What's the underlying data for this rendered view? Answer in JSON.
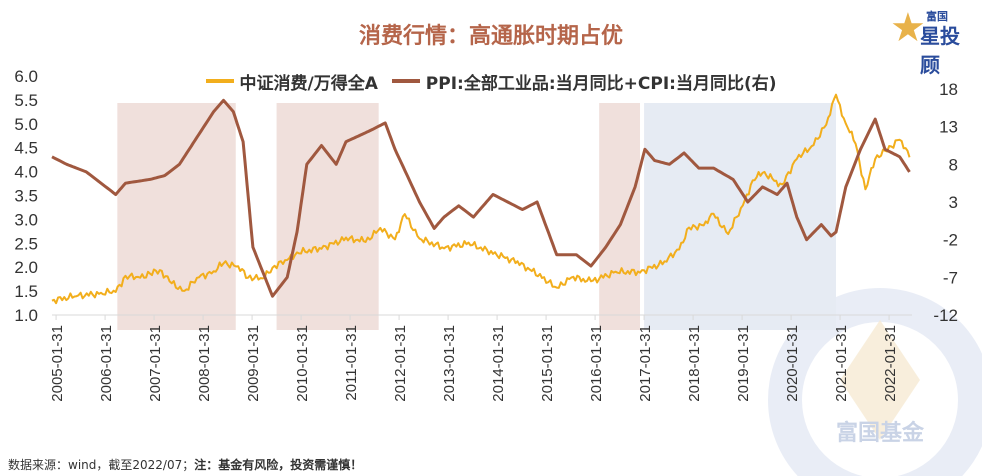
{
  "header": {
    "title": "消费行情：高通胀时期占优",
    "logo_top": "富国",
    "logo_bottom": "星投顾",
    "watermark": "富国基金"
  },
  "footer": {
    "source": "数据来源：wind，截至2022/07；",
    "note": "注：基金有风险，投资需谨慎！"
  },
  "colors": {
    "consumer_ratio": "#f2ae1c",
    "inflation": "#a0583f",
    "shade_red": "#f0e0dc",
    "shade_blue": "#e6ebf3"
  },
  "chart_data": {
    "type": "line",
    "title": "消费行情：高通胀时期占优",
    "legend_position": "top",
    "grid": false,
    "x_ticks": [
      "2005-01-31",
      "2006-01-31",
      "2007-01-31",
      "2008-01-31",
      "2009-01-31",
      "2010-01-31",
      "2011-01-31",
      "2012-01-31",
      "2013-01-31",
      "2014-01-31",
      "2015-01-31",
      "2016-01-31",
      "2017-01-31",
      "2018-01-31",
      "2019-01-31",
      "2020-01-31",
      "2021-01-31",
      "2022-01-31"
    ],
    "y_left": {
      "range": [
        1.0,
        6.0
      ],
      "ticks": [
        "1.0",
        "1.5",
        "2.0",
        "2.5",
        "3.0",
        "3.5",
        "4.0",
        "4.5",
        "5.0",
        "5.5",
        "6.0"
      ]
    },
    "y_right": {
      "range": [
        -12,
        18
      ],
      "ticks": [
        "-12",
        "-7",
        "-2",
        "3",
        "8",
        "13",
        "18"
      ]
    },
    "shaded_periods": [
      {
        "start": "2006-05",
        "end": "2008-10",
        "color": "red"
      },
      {
        "start": "2009-08",
        "end": "2011-09",
        "color": "red"
      },
      {
        "start": "2016-03",
        "end": "2017-01",
        "color": "red"
      },
      {
        "start": "2017-02",
        "end": "2021-01",
        "color": "blue"
      }
    ],
    "series": [
      {
        "name": "中证消费/万得全A",
        "axis": "left",
        "points": [
          [
            2005.0,
            1.3
          ],
          [
            2005.5,
            1.4
          ],
          [
            2006.0,
            1.45
          ],
          [
            2006.3,
            1.5
          ],
          [
            2006.5,
            1.8
          ],
          [
            2006.8,
            1.8
          ],
          [
            2007.0,
            1.85
          ],
          [
            2007.2,
            1.95
          ],
          [
            2007.4,
            1.7
          ],
          [
            2007.7,
            1.5
          ],
          [
            2008.0,
            1.8
          ],
          [
            2008.3,
            1.9
          ],
          [
            2008.5,
            2.1
          ],
          [
            2008.8,
            2.0
          ],
          [
            2009.0,
            1.8
          ],
          [
            2009.3,
            1.75
          ],
          [
            2009.5,
            2.0
          ],
          [
            2009.8,
            2.15
          ],
          [
            2010.0,
            2.3
          ],
          [
            2010.5,
            2.4
          ],
          [
            2011.0,
            2.6
          ],
          [
            2011.4,
            2.55
          ],
          [
            2011.7,
            2.8
          ],
          [
            2012.0,
            2.6
          ],
          [
            2012.2,
            3.1
          ],
          [
            2012.5,
            2.6
          ],
          [
            2013.0,
            2.4
          ],
          [
            2013.5,
            2.5
          ],
          [
            2014.0,
            2.3
          ],
          [
            2014.5,
            2.1
          ],
          [
            2015.0,
            1.8
          ],
          [
            2015.3,
            1.55
          ],
          [
            2015.6,
            1.8
          ],
          [
            2016.0,
            1.7
          ],
          [
            2016.5,
            1.9
          ],
          [
            2017.0,
            1.9
          ],
          [
            2017.5,
            2.1
          ],
          [
            2017.8,
            2.4
          ],
          [
            2018.0,
            2.8
          ],
          [
            2018.3,
            2.9
          ],
          [
            2018.5,
            3.1
          ],
          [
            2018.8,
            2.7
          ],
          [
            2019.1,
            3.3
          ],
          [
            2019.3,
            3.8
          ],
          [
            2019.5,
            4.0
          ],
          [
            2019.9,
            3.7
          ],
          [
            2020.2,
            4.3
          ],
          [
            2020.5,
            4.5
          ],
          [
            2020.8,
            5.0
          ],
          [
            2021.0,
            5.6
          ],
          [
            2021.2,
            5.0
          ],
          [
            2021.4,
            4.6
          ],
          [
            2021.6,
            3.6
          ],
          [
            2021.8,
            4.3
          ],
          [
            2022.0,
            4.4
          ],
          [
            2022.3,
            4.7
          ],
          [
            2022.5,
            4.3
          ]
        ]
      },
      {
        "name": "PPI:全部工业品:当月同比+CPI:当月同比(右)",
        "axis": "right",
        "points": [
          [
            2005.0,
            9.0
          ],
          [
            2005.3,
            8
          ],
          [
            2005.7,
            7
          ],
          [
            2006.0,
            5.5
          ],
          [
            2006.3,
            4
          ],
          [
            2006.5,
            5.5
          ],
          [
            2007.0,
            6
          ],
          [
            2007.3,
            6.5
          ],
          [
            2007.6,
            8
          ],
          [
            2008.0,
            12
          ],
          [
            2008.3,
            15
          ],
          [
            2008.5,
            16.5
          ],
          [
            2008.7,
            15
          ],
          [
            2008.9,
            11
          ],
          [
            2009.1,
            -3
          ],
          [
            2009.5,
            -9.5
          ],
          [
            2009.8,
            -7
          ],
          [
            2010.0,
            -1
          ],
          [
            2010.2,
            8
          ],
          [
            2010.5,
            10.5
          ],
          [
            2010.8,
            8
          ],
          [
            2011.0,
            11
          ],
          [
            2011.5,
            12.5
          ],
          [
            2011.8,
            13.5
          ],
          [
            2012.0,
            10
          ],
          [
            2012.5,
            3
          ],
          [
            2012.8,
            -0.5
          ],
          [
            2013.0,
            1
          ],
          [
            2013.3,
            2.5
          ],
          [
            2013.6,
            1
          ],
          [
            2014.0,
            4
          ],
          [
            2014.3,
            3
          ],
          [
            2014.6,
            2
          ],
          [
            2014.9,
            3
          ],
          [
            2015.1,
            -0.5
          ],
          [
            2015.3,
            -4
          ],
          [
            2015.7,
            -4
          ],
          [
            2016.0,
            -5.5
          ],
          [
            2016.3,
            -3
          ],
          [
            2016.6,
            0
          ],
          [
            2016.9,
            5
          ],
          [
            2017.1,
            10
          ],
          [
            2017.3,
            8.5
          ],
          [
            2017.6,
            8
          ],
          [
            2017.9,
            9.5
          ],
          [
            2018.2,
            7.5
          ],
          [
            2018.5,
            7.5
          ],
          [
            2018.9,
            6
          ],
          [
            2019.2,
            3
          ],
          [
            2019.5,
            5
          ],
          [
            2019.8,
            4
          ],
          [
            2020.0,
            5.5
          ],
          [
            2020.2,
            1
          ],
          [
            2020.4,
            -2
          ],
          [
            2020.7,
            0
          ],
          [
            2020.9,
            -1.5
          ],
          [
            2021.0,
            -1
          ],
          [
            2021.2,
            5
          ],
          [
            2021.5,
            10
          ],
          [
            2021.8,
            14
          ],
          [
            2022.0,
            10
          ],
          [
            2022.3,
            9
          ],
          [
            2022.5,
            7
          ]
        ]
      }
    ]
  }
}
